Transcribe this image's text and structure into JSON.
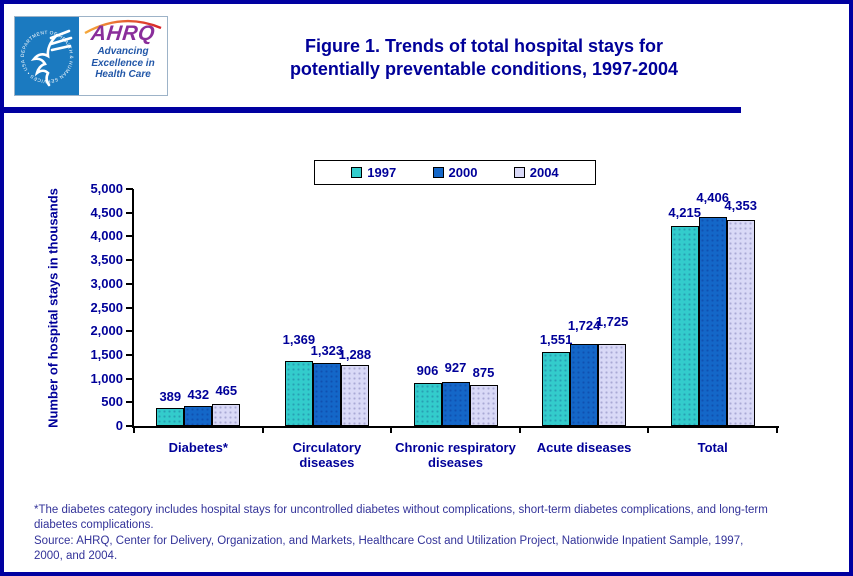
{
  "header": {
    "logo": {
      "seal_text": "DEPARTMENT OF HEALTH & HUMAN SERVICES • USA",
      "ahrq_text": "AHRQ",
      "tagline_lines": [
        "Advancing",
        "Excellence in",
        "Health Care"
      ]
    },
    "title_lines": [
      "Figure 1. Trends of total hospital stays for",
      "potentially preventable conditions, 1997-2004"
    ]
  },
  "chart_data": {
    "type": "bar",
    "title": "Figure 1. Trends of total hospital stays for potentially preventable conditions, 1997-2004",
    "categories": [
      "Diabetes*",
      "Circulatory diseases",
      "Chronic respiratory diseases",
      "Acute diseases",
      "Total"
    ],
    "category_label_lines": [
      [
        "Diabetes*"
      ],
      [
        "Circulatory",
        "diseases"
      ],
      [
        "Chronic respiratory",
        "diseases"
      ],
      [
        "Acute diseases"
      ],
      [
        "Total"
      ]
    ],
    "series": [
      {
        "name": "1997",
        "color": "#33CCCC",
        "values": [
          389,
          1369,
          906,
          1551,
          4215
        ]
      },
      {
        "name": "2000",
        "color": "#1467C8",
        "values": [
          432,
          1323,
          927,
          1724,
          4406
        ]
      },
      {
        "name": "2004",
        "color": "#D9D9F7",
        "values": [
          465,
          1288,
          875,
          1725,
          4353
        ]
      }
    ],
    "xlabel": "",
    "ylabel": "Number of hospital stays in thousands",
    "ylim": [
      0,
      5000
    ],
    "ytick_step": 500,
    "grid": false,
    "legend_position": "top-center",
    "value_labels": true,
    "label_offsets": [
      [
        2,
        2,
        4
      ],
      [
        12,
        3,
        1
      ],
      [
        3,
        5,
        3
      ],
      [
        3,
        9,
        13
      ],
      [
        4,
        10,
        5
      ]
    ]
  },
  "footer": {
    "footnote_lines": [
      "*The diabetes category includes hospital stays for uncontrolled diabetes without complications, short-term diabetes complications, and long-term",
      "diabetes complications."
    ],
    "source_lines": [
      "Source: AHRQ, Center for Delivery, Organization, and Markets, Healthcare Cost and Utilization Project, Nationwide Inpatient Sample, 1997,",
      "2000, and 2004."
    ]
  },
  "colors": {
    "accent_navy": "#000099",
    "border_navy": "#0000A0",
    "hhs_blue": "#1B7AC0",
    "ahrq_purple": "#8A2E9B",
    "footer_text": "#333399",
    "series_1997": "#33CCCC",
    "series_2000": "#1467C8",
    "series_2004": "#D9D9F7"
  }
}
